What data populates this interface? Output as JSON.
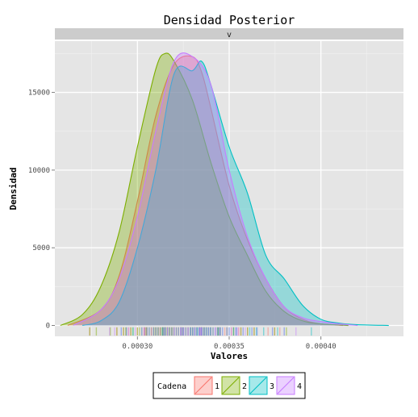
{
  "chart_data": {
    "type": "area",
    "title": "Densidad Posterior",
    "facet_label": "v",
    "xlabel": "Valores",
    "ylabel": "Densidad",
    "xlim": [
      0.000255,
      0.000445
    ],
    "ylim": [
      -700,
      18300
    ],
    "x_ticks": [
      0.0003,
      0.00035,
      0.0004
    ],
    "x_tick_labels": [
      "0.00030",
      "0.00035",
      "0.00040"
    ],
    "y_ticks": [
      0,
      5000,
      10000,
      15000
    ],
    "y_tick_labels": [
      "0",
      "5000",
      "10000",
      "15000"
    ],
    "grid": true,
    "rug": true,
    "legend": {
      "title": "Cadena",
      "position": "bottom",
      "entries": [
        "1",
        "2",
        "3",
        "4"
      ]
    },
    "series": [
      {
        "name": "1",
        "color": "#F8766D",
        "x": [
          0.000262,
          0.00028,
          0.00029,
          0.0003,
          0.00031,
          0.00032,
          0.00033,
          0.000335,
          0.00034,
          0.00035,
          0.00036,
          0.00037,
          0.00038,
          0.00039,
          0.0004,
          0.000412
        ],
        "y": [
          0,
          1000,
          3200,
          8000,
          13500,
          16800,
          17300,
          16300,
          14000,
          9000,
          5500,
          3000,
          1200,
          400,
          100,
          0
        ]
      },
      {
        "name": "2",
        "color": "#7CAE00",
        "x": [
          0.000258,
          0.00027,
          0.00028,
          0.00029,
          0.0003,
          0.00031,
          0.000315,
          0.00032,
          0.00033,
          0.00034,
          0.00035,
          0.00036,
          0.00037,
          0.00038,
          0.00039,
          0.0004,
          0.000415
        ],
        "y": [
          0,
          700,
          2500,
          6000,
          11500,
          16500,
          17500,
          17000,
          14500,
          10500,
          7000,
          4500,
          2200,
          900,
          300,
          100,
          0
        ]
      },
      {
        "name": "3",
        "color": "#00BFC4",
        "x": [
          0.00027,
          0.00028,
          0.00029,
          0.0003,
          0.00031,
          0.00032,
          0.00033,
          0.000335,
          0.00034,
          0.00035,
          0.00036,
          0.00037,
          0.00038,
          0.00039,
          0.0004,
          0.00041,
          0.00042,
          0.000437
        ],
        "y": [
          0,
          300,
          1500,
          5000,
          10000,
          16200,
          16400,
          17000,
          15500,
          11500,
          8500,
          4500,
          3000,
          1300,
          400,
          150,
          50,
          0
        ]
      },
      {
        "name": "4",
        "color": "#C77CFF",
        "x": [
          0.000265,
          0.00028,
          0.00029,
          0.0003,
          0.00031,
          0.00032,
          0.00033,
          0.00034,
          0.00035,
          0.00036,
          0.00037,
          0.00038,
          0.00039,
          0.0004,
          0.00041,
          0.00042
        ],
        "y": [
          0,
          1000,
          3000,
          7000,
          12500,
          17000,
          17300,
          15500,
          10000,
          5700,
          3000,
          1200,
          500,
          250,
          100,
          0
        ]
      }
    ]
  }
}
